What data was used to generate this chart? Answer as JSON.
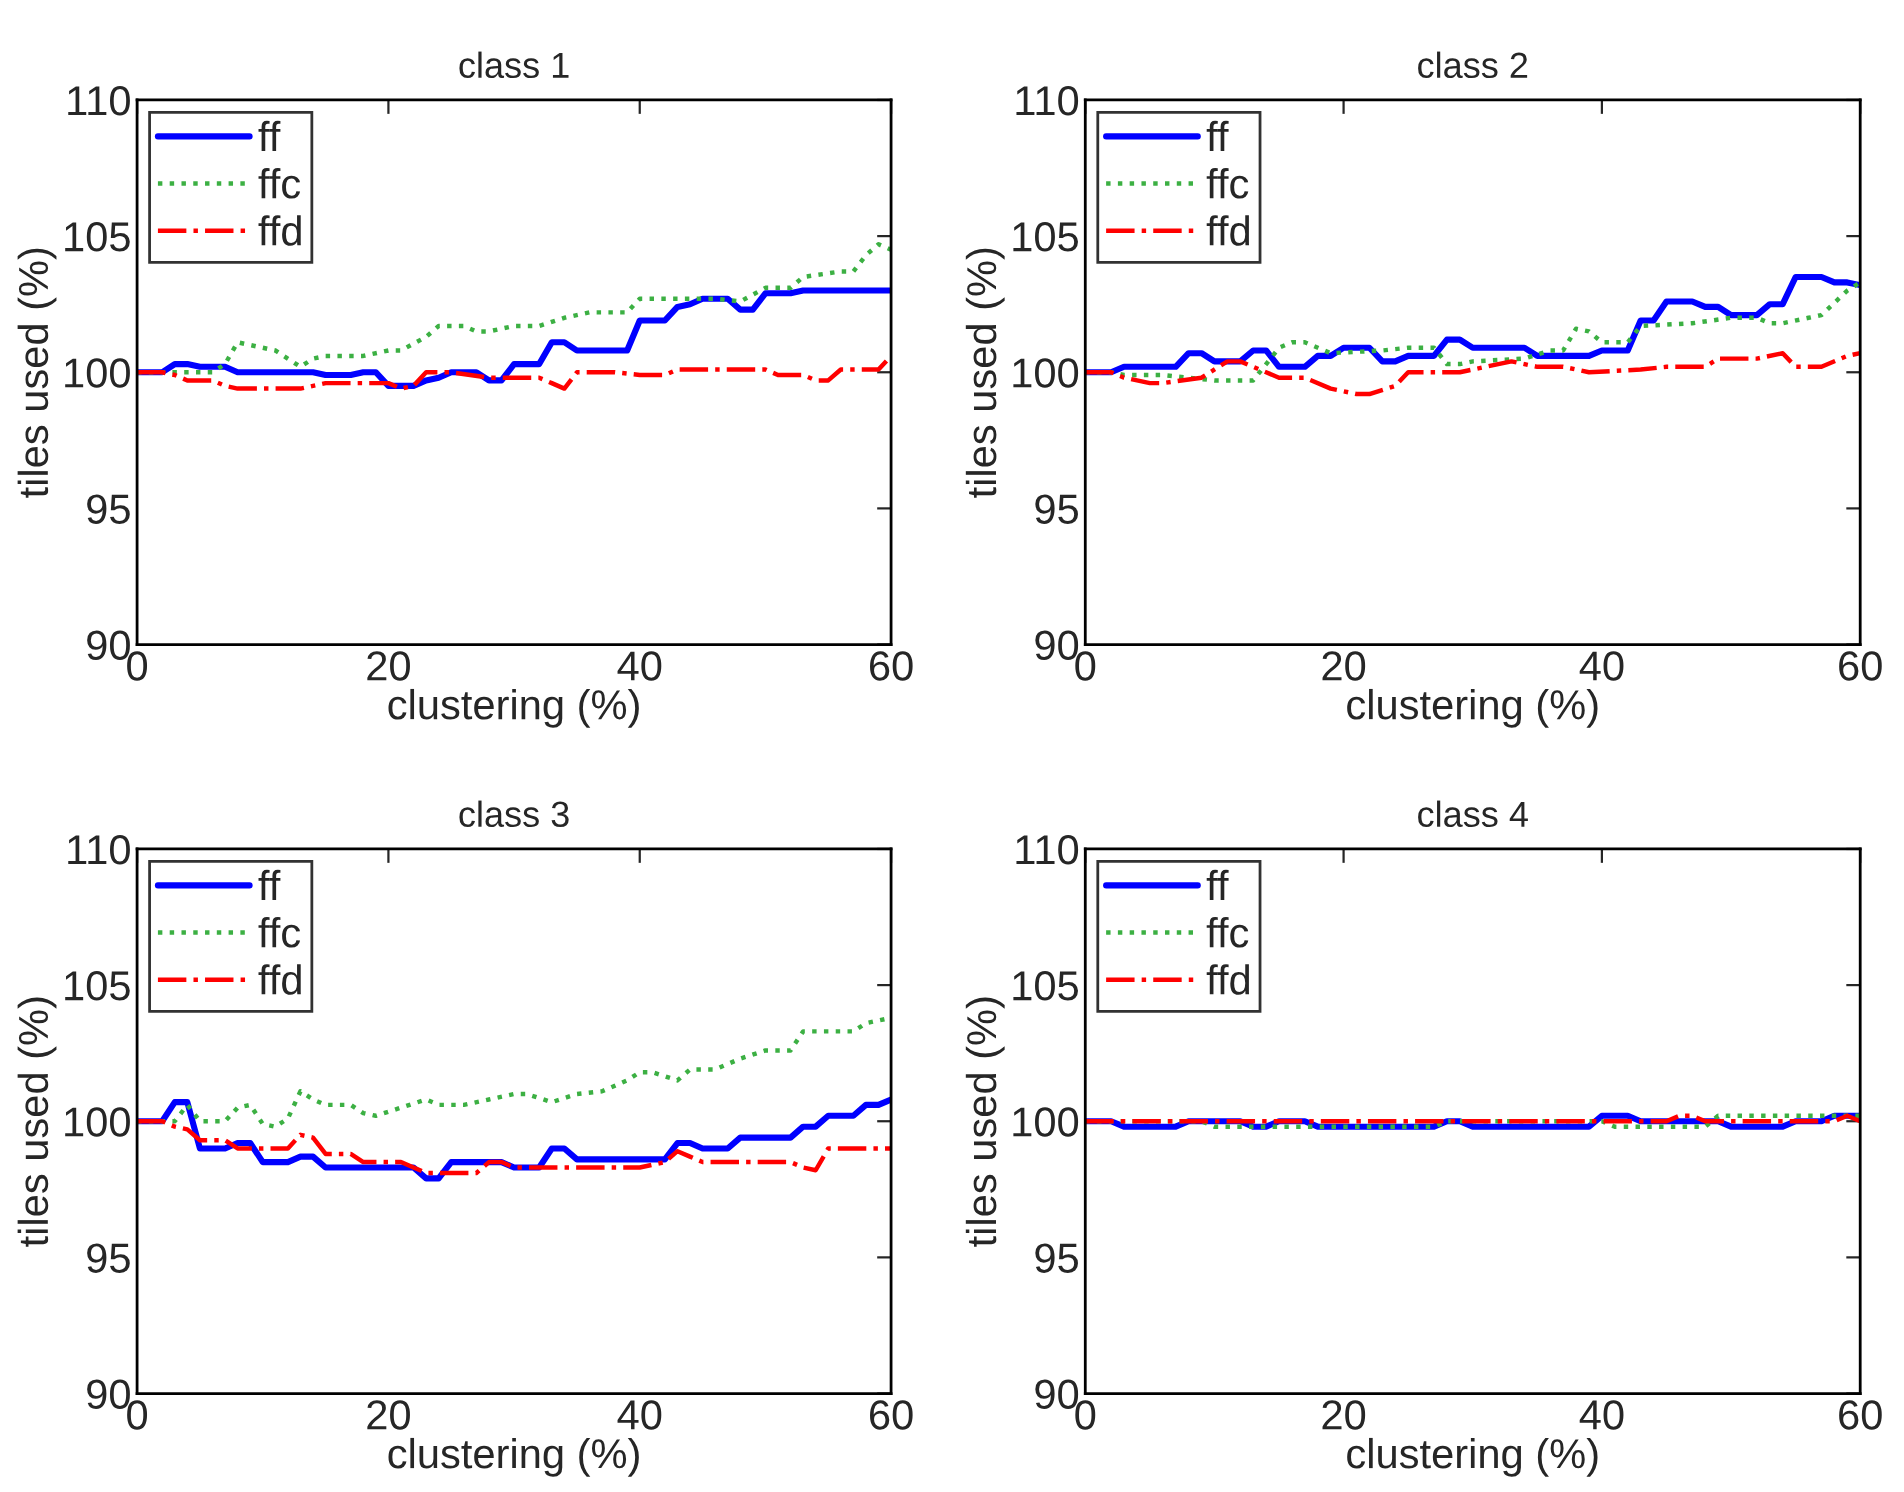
{
  "chart_data": [
    {
      "type": "line",
      "title": "class 1",
      "xlabel": "clustering (%)",
      "ylabel": "tiles used (%)",
      "xlim": [
        0,
        60
      ],
      "xticks": [
        0,
        20,
        40,
        60
      ],
      "ylim": [
        90,
        110
      ],
      "yticks": [
        90,
        95,
        100,
        105,
        110
      ],
      "grid": false,
      "legend": "top left",
      "series": [
        {
          "name": "ff",
          "color": "#0000ff",
          "line_style": "solid",
          "x": [
            0,
            2,
            3,
            4,
            5,
            7,
            8,
            14,
            15,
            17,
            18,
            19,
            20,
            22,
            23,
            24,
            25,
            27,
            28,
            29,
            30,
            32,
            33,
            34,
            35,
            39,
            40,
            42,
            43,
            44,
            45,
            47,
            48,
            49,
            50,
            52,
            53,
            60
          ],
          "values": [
            100,
            100,
            100.3,
            100.3,
            100.2,
            100.2,
            100.0,
            100.0,
            99.9,
            99.9,
            100.0,
            100.0,
            99.5,
            99.5,
            99.7,
            99.8,
            100.0,
            100.0,
            99.7,
            99.7,
            100.3,
            100.3,
            101.1,
            101.1,
            100.8,
            100.8,
            101.9,
            101.9,
            102.4,
            102.5,
            102.7,
            102.7,
            102.3,
            102.3,
            102.9,
            102.9,
            103.0,
            103.0
          ]
        },
        {
          "name": "ffc",
          "color": "#3cb043",
          "line_style": "dotted",
          "x": [
            0,
            6,
            7,
            8,
            9,
            11,
            13,
            14,
            15,
            18,
            20,
            21,
            23,
            24,
            26,
            27,
            28,
            30,
            32,
            34,
            36,
            39,
            40,
            44,
            46,
            48,
            50,
            52,
            53,
            56,
            57,
            58,
            59,
            60
          ],
          "values": [
            100,
            100,
            100.3,
            101.1,
            101.0,
            100.8,
            100.2,
            100.5,
            100.6,
            100.6,
            100.8,
            100.8,
            101.3,
            101.7,
            101.7,
            101.5,
            101.5,
            101.7,
            101.7,
            102.0,
            102.2,
            102.2,
            102.7,
            102.7,
            102.7,
            102.6,
            103.1,
            103.1,
            103.5,
            103.7,
            103.7,
            104.3,
            104.7,
            104.5
          ]
        },
        {
          "name": "ffd",
          "color": "#ff0000",
          "line_style": "dashdot",
          "x": [
            0,
            2,
            3,
            4,
            6,
            7,
            8,
            13,
            15,
            20,
            21,
            22,
            23,
            25,
            28,
            32,
            33,
            34,
            35,
            38,
            40,
            42,
            43,
            50,
            51,
            53,
            54,
            55,
            56,
            59,
            60
          ],
          "values": [
            100,
            100,
            99.9,
            99.7,
            99.7,
            99.5,
            99.4,
            99.4,
            99.6,
            99.6,
            99.4,
            99.5,
            100.0,
            100.0,
            99.8,
            99.8,
            99.6,
            99.4,
            100.0,
            100.0,
            99.9,
            99.9,
            100.1,
            100.1,
            99.9,
            99.9,
            99.7,
            99.7,
            100.1,
            100.1,
            100.6
          ]
        }
      ]
    },
    {
      "type": "line",
      "title": "class 2",
      "xlabel": "clustering (%)",
      "ylabel": "tiles used (%)",
      "xlim": [
        0,
        60
      ],
      "xticks": [
        0,
        20,
        40,
        60
      ],
      "ylim": [
        90,
        110
      ],
      "yticks": [
        90,
        95,
        100,
        105,
        110
      ],
      "grid": false,
      "legend": "top left",
      "series": [
        {
          "name": "ff",
          "color": "#0000ff",
          "line_style": "solid",
          "x": [
            0,
            2,
            3,
            7,
            8,
            9,
            10,
            12,
            13,
            14,
            15,
            17,
            18,
            19,
            20,
            22,
            23,
            24,
            25,
            27,
            28,
            29,
            30,
            34,
            35,
            39,
            40,
            42,
            43,
            44,
            45,
            47,
            48,
            49,
            50,
            52,
            53,
            54,
            55,
            57,
            58,
            59,
            60
          ],
          "values": [
            100,
            100,
            100.2,
            100.2,
            100.7,
            100.7,
            100.4,
            100.4,
            100.8,
            100.8,
            100.2,
            100.2,
            100.6,
            100.6,
            100.9,
            100.9,
            100.4,
            100.4,
            100.6,
            100.6,
            101.2,
            101.2,
            100.9,
            100.9,
            100.6,
            100.6,
            100.8,
            100.8,
            101.9,
            101.9,
            102.6,
            102.6,
            102.4,
            102.4,
            102.1,
            102.1,
            102.5,
            102.5,
            103.5,
            103.5,
            103.3,
            103.3,
            103.2
          ]
        },
        {
          "name": "ffc",
          "color": "#3cb043",
          "line_style": "dotted",
          "x": [
            0,
            2,
            3,
            6,
            8,
            10,
            13,
            15,
            16,
            17,
            19,
            23,
            25,
            27,
            28,
            29,
            30,
            34,
            36,
            37,
            38,
            39,
            40,
            42,
            43,
            47,
            50,
            52,
            53,
            54,
            56,
            57,
            59,
            60
          ],
          "values": [
            100,
            100,
            99.9,
            99.9,
            99.8,
            99.7,
            99.7,
            100.9,
            101.1,
            101.1,
            100.7,
            100.8,
            100.9,
            100.9,
            100.3,
            100.3,
            100.4,
            100.5,
            100.8,
            100.8,
            101.6,
            101.5,
            101.1,
            101.1,
            101.7,
            101.8,
            102.0,
            102.0,
            101.8,
            101.8,
            102.0,
            102.1,
            103.0,
            103.3
          ]
        },
        {
          "name": "ffd",
          "color": "#ff0000",
          "line_style": "dashdot",
          "x": [
            0,
            2,
            3,
            5,
            6,
            9,
            11,
            12,
            14,
            15,
            17,
            19,
            21,
            22,
            24,
            25,
            29,
            31,
            33,
            35,
            37,
            39,
            43,
            45,
            48,
            49,
            52,
            54,
            55,
            57,
            59,
            60
          ],
          "values": [
            100,
            100,
            99.8,
            99.6,
            99.6,
            99.8,
            100.4,
            100.4,
            100.0,
            99.8,
            99.8,
            99.4,
            99.2,
            99.2,
            99.5,
            100.0,
            100.0,
            100.2,
            100.4,
            100.2,
            100.2,
            100.0,
            100.1,
            100.2,
            100.2,
            100.5,
            100.5,
            100.7,
            100.2,
            100.2,
            100.6,
            100.7
          ]
        }
      ]
    },
    {
      "type": "line",
      "title": "class 3",
      "xlabel": "clustering (%)",
      "ylabel": "tiles used (%)",
      "xlim": [
        0,
        60
      ],
      "xticks": [
        0,
        20,
        40,
        60
      ],
      "ylim": [
        90,
        110
      ],
      "yticks": [
        90,
        95,
        100,
        105,
        110
      ],
      "grid": false,
      "legend": "top left",
      "series": [
        {
          "name": "ff",
          "color": "#0000ff",
          "line_style": "solid",
          "x": [
            0,
            2,
            3,
            4,
            5,
            7,
            8,
            9,
            10,
            12,
            13,
            14,
            15,
            22,
            23,
            24,
            25,
            29,
            30,
            32,
            33,
            34,
            35,
            42,
            43,
            44,
            45,
            47,
            48,
            52,
            53,
            54,
            55,
            57,
            58,
            59,
            60
          ],
          "values": [
            100,
            100,
            100.7,
            100.7,
            99.0,
            99.0,
            99.2,
            99.2,
            98.5,
            98.5,
            98.7,
            98.7,
            98.3,
            98.3,
            97.9,
            97.9,
            98.5,
            98.5,
            98.3,
            98.3,
            99.0,
            99.0,
            98.6,
            98.6,
            99.2,
            99.2,
            99.0,
            99.0,
            99.4,
            99.4,
            99.8,
            99.8,
            100.2,
            100.2,
            100.6,
            100.6,
            100.8
          ]
        },
        {
          "name": "ffc",
          "color": "#3cb043",
          "line_style": "dotted",
          "x": [
            0,
            3,
            4,
            5,
            7,
            8,
            9,
            10,
            11,
            12,
            13,
            14,
            15,
            17,
            18,
            19,
            21,
            23,
            24,
            26,
            28,
            30,
            31,
            33,
            35,
            37,
            39,
            40,
            41,
            43,
            44,
            46,
            48,
            50,
            52,
            53,
            57,
            58,
            60
          ],
          "values": [
            100,
            100,
            100.6,
            100.0,
            100.0,
            100.5,
            100.6,
            99.9,
            99.8,
            100.1,
            101.1,
            100.8,
            100.6,
            100.6,
            100.3,
            100.2,
            100.5,
            100.8,
            100.6,
            100.6,
            100.8,
            101.0,
            101.0,
            100.7,
            101.0,
            101.1,
            101.5,
            101.8,
            101.8,
            101.5,
            101.9,
            101.9,
            102.3,
            102.6,
            102.6,
            103.3,
            103.3,
            103.6,
            103.8
          ]
        },
        {
          "name": "ffd",
          "color": "#ff0000",
          "line_style": "dashdot",
          "x": [
            0,
            2,
            3,
            4,
            5,
            7,
            8,
            12,
            13,
            14,
            15,
            17,
            18,
            21,
            22,
            23,
            27,
            28,
            29,
            30,
            40,
            42,
            43,
            44,
            45,
            52,
            53,
            54,
            55,
            60
          ],
          "values": [
            100,
            100,
            99.8,
            99.7,
            99.3,
            99.3,
            99.0,
            99.0,
            99.5,
            99.4,
            98.8,
            98.8,
            98.5,
            98.5,
            98.3,
            98.1,
            98.1,
            98.5,
            98.5,
            98.3,
            98.3,
            98.5,
            98.9,
            98.7,
            98.5,
            98.5,
            98.3,
            98.2,
            99.0,
            99.0
          ]
        }
      ]
    },
    {
      "type": "line",
      "title": "class 4",
      "xlabel": "clustering (%)",
      "ylabel": "tiles used (%)",
      "xlim": [
        0,
        60
      ],
      "xticks": [
        0,
        20,
        40,
        60
      ],
      "ylim": [
        90,
        110
      ],
      "yticks": [
        90,
        95,
        100,
        105,
        110
      ],
      "grid": false,
      "legend": "top left",
      "series": [
        {
          "name": "ff",
          "color": "#0000ff",
          "line_style": "solid",
          "x": [
            0,
            2,
            3,
            7,
            8,
            12,
            13,
            14,
            15,
            17,
            18,
            27,
            28,
            29,
            30,
            39,
            40,
            42,
            43,
            49,
            50,
            54,
            55,
            57,
            58,
            60
          ],
          "values": [
            100,
            100,
            99.8,
            99.8,
            100,
            100,
            99.8,
            99.8,
            100,
            100,
            99.8,
            99.8,
            100,
            100,
            99.8,
            99.8,
            100.2,
            100.2,
            100,
            100,
            99.8,
            99.8,
            100,
            100,
            100.2,
            100.2
          ]
        },
        {
          "name": "ffc",
          "color": "#3cb043",
          "line_style": "dotted",
          "x": [
            0,
            9,
            10,
            27,
            28,
            40,
            41,
            48,
            49,
            60
          ],
          "values": [
            100,
            100,
            99.8,
            99.8,
            100,
            100,
            99.8,
            99.8,
            100.2,
            100.2
          ]
        },
        {
          "name": "ffd",
          "color": "#ff0000",
          "line_style": "dashdot",
          "x": [
            0,
            45,
            46,
            47,
            48,
            58,
            59,
            60
          ],
          "values": [
            100,
            100,
            100.2,
            100.2,
            100,
            100,
            100.2,
            100
          ]
        }
      ]
    }
  ]
}
